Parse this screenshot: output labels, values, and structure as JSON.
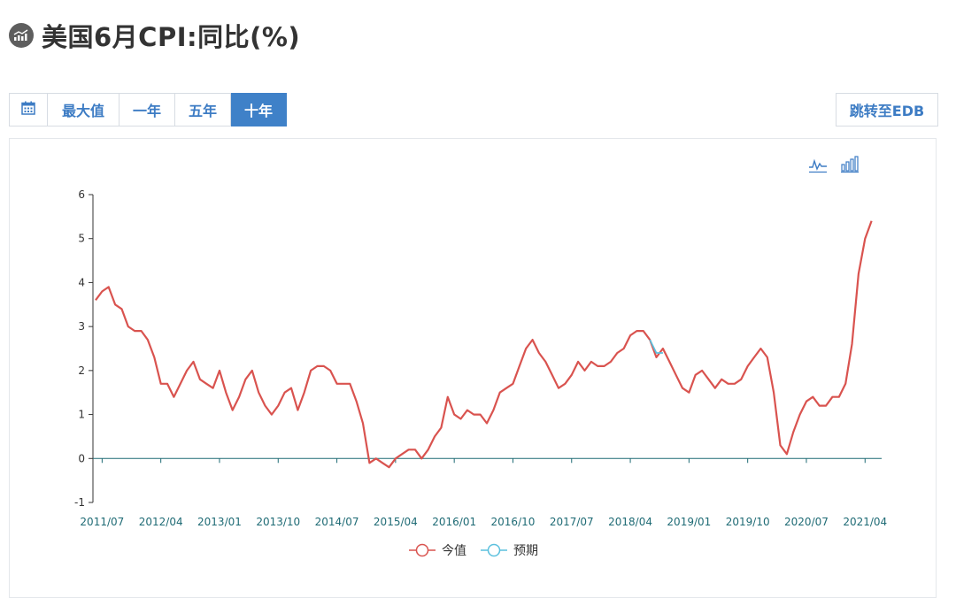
{
  "title": "美国6月CPI:同比(%)",
  "toolbar": {
    "buttons": [
      {
        "label": "",
        "icon": "calendar-icon"
      },
      {
        "label": "最大值"
      },
      {
        "label": "一年"
      },
      {
        "label": "五年"
      },
      {
        "label": "十年",
        "active": true
      }
    ],
    "edb_label": "跳转至EDB"
  },
  "colors": {
    "accent": "#3f81c8",
    "series_actual": "#d9534f",
    "series_forecast": "#5bc0de",
    "axis": "#1f6b75"
  },
  "chart_data": {
    "type": "line",
    "title": "",
    "xlabel": "",
    "ylabel": "",
    "ylim": [
      -1,
      6
    ],
    "yticks": [
      "-1",
      "0",
      "1",
      "2",
      "3",
      "4",
      "5",
      "6"
    ],
    "xticks": [
      "2011/07",
      "2012/04",
      "2013/01",
      "2013/10",
      "2014/07",
      "2015/04",
      "2016/01",
      "2016/10",
      "2017/07",
      "2018/04",
      "2019/01",
      "2019/10",
      "2020/07",
      "2021/04"
    ],
    "x_start": "2011/06",
    "x_end": "2021/06",
    "legend": {
      "position": "bottom-center"
    },
    "series": [
      {
        "name": "今值",
        "color": "#d9534f",
        "values": [
          3.6,
          3.8,
          3.9,
          3.5,
          3.4,
          3.0,
          2.9,
          2.9,
          2.7,
          2.3,
          1.7,
          1.7,
          1.4,
          1.7,
          2.0,
          2.2,
          1.8,
          1.7,
          1.6,
          2.0,
          1.5,
          1.1,
          1.4,
          1.8,
          2.0,
          1.5,
          1.2,
          1.0,
          1.2,
          1.5,
          1.6,
          1.1,
          1.5,
          2.0,
          2.1,
          2.1,
          2.0,
          1.7,
          1.7,
          1.7,
          1.3,
          0.8,
          -0.1,
          0.0,
          -0.1,
          -0.2,
          0.0,
          0.1,
          0.2,
          0.2,
          0.0,
          0.2,
          0.5,
          0.7,
          1.4,
          1.0,
          0.9,
          1.1,
          1.0,
          1.0,
          0.8,
          1.1,
          1.5,
          1.6,
          1.7,
          2.1,
          2.5,
          2.7,
          2.4,
          2.2,
          1.9,
          1.6,
          1.7,
          1.9,
          2.2,
          2.0,
          2.2,
          2.1,
          2.1,
          2.2,
          2.4,
          2.5,
          2.8,
          2.9,
          2.9,
          2.7,
          2.3,
          2.5,
          2.2,
          1.9,
          1.6,
          1.5,
          1.9,
          2.0,
          1.8,
          1.6,
          1.8,
          1.7,
          1.7,
          1.8,
          2.1,
          2.3,
          2.5,
          2.3,
          1.5,
          0.3,
          0.1,
          0.6,
          1.0,
          1.3,
          1.4,
          1.2,
          1.2,
          1.4,
          1.4,
          1.7,
          2.6,
          4.2,
          5.0,
          5.4
        ]
      },
      {
        "name": "预期",
        "color": "#5bc0de",
        "values": [
          null,
          null,
          null,
          null,
          null,
          null,
          null,
          null,
          null,
          null,
          null,
          null,
          null,
          null,
          null,
          null,
          null,
          null,
          null,
          null,
          null,
          null,
          null,
          null,
          null,
          null,
          null,
          null,
          null,
          null,
          null,
          null,
          null,
          null,
          null,
          null,
          null,
          null,
          null,
          null,
          null,
          null,
          null,
          null,
          null,
          null,
          null,
          null,
          null,
          null,
          null,
          null,
          null,
          null,
          null,
          null,
          null,
          null,
          null,
          null,
          null,
          null,
          null,
          null,
          null,
          null,
          null,
          null,
          null,
          null,
          null,
          null,
          null,
          null,
          null,
          null,
          null,
          null,
          null,
          null,
          null,
          null,
          null,
          null,
          null,
          2.7,
          2.4,
          2.4,
          null,
          null,
          null,
          null,
          null,
          null,
          null,
          null,
          null,
          null,
          null,
          null,
          null,
          null,
          null,
          null,
          null,
          null,
          null,
          null,
          null,
          null,
          null,
          null,
          null,
          null,
          null,
          null,
          null,
          null,
          null,
          null,
          null
        ]
      }
    ]
  }
}
